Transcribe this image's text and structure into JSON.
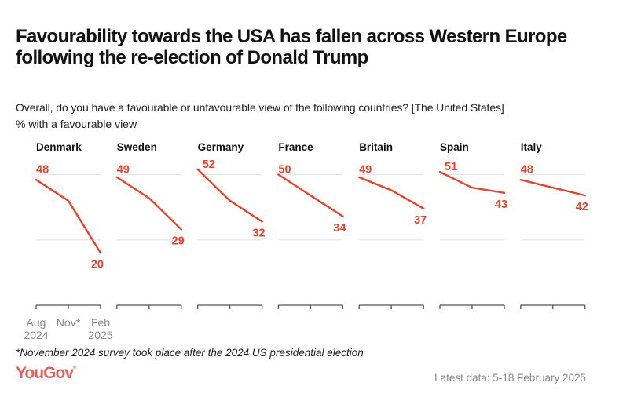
{
  "header": {
    "title": "Favourability towards the USA has fallen across Western Europe following the re-election of Donald Trump",
    "subtitle": "Overall, do you have a favourable or unfavourable view of the following countries? [The United States]",
    "unit_note": "% with a favourable view"
  },
  "chart_data": {
    "type": "line",
    "layout": "small-multiples",
    "title": "Favourability towards the USA has fallen across Western Europe following the re-election of Donald Trump",
    "subtitle": "Overall, do you have a favourable or unfavourable view of the following countries? [The United States]",
    "ylabel": "% with a favourable view",
    "xlabel": "",
    "x": [
      "Aug 2024",
      "Nov* 2024",
      "Feb 2025"
    ],
    "x_tick_labels": [
      {
        "line1": "Aug",
        "line2": "2024"
      },
      {
        "line1": "Nov*",
        "line2": ""
      },
      {
        "line1": "Feb",
        "line2": "2025"
      }
    ],
    "ylim": [
      0,
      55
    ],
    "gridlines": [
      25,
      50
    ],
    "grid": true,
    "line_color": "#e8432f",
    "series": [
      {
        "name": "Denmark",
        "values": [
          48,
          40,
          20
        ]
      },
      {
        "name": "Sweden",
        "values": [
          49,
          41,
          29
        ]
      },
      {
        "name": "Germany",
        "values": [
          52,
          40,
          32
        ]
      },
      {
        "name": "France",
        "values": [
          50,
          42,
          34
        ]
      },
      {
        "name": "Britain",
        "values": [
          49,
          44,
          37
        ]
      },
      {
        "name": "Spain",
        "values": [
          51,
          45,
          43
        ]
      },
      {
        "name": "Italy",
        "values": [
          48,
          45,
          42
        ]
      }
    ],
    "labelled_points": "first and last value of each series"
  },
  "footer": {
    "footnote": "*November 2024 survey took place after the 2024 US presidential election",
    "brand": "YouGov",
    "brand_mark": "®",
    "brand_color": "#e0625b",
    "latest_data": "Latest data: 5-18 February 2025"
  }
}
